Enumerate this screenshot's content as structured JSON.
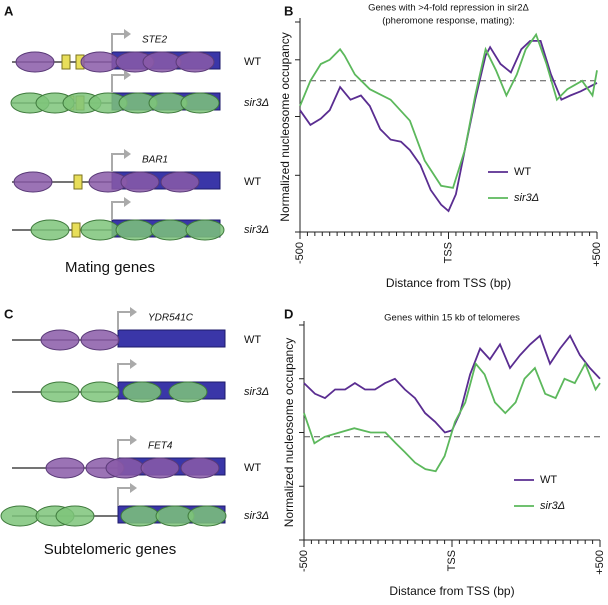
{
  "panels": [
    "A",
    "B",
    "C",
    "D"
  ],
  "diagrams": [
    {
      "caption": "Mating genes",
      "rows": [
        {
          "gene": "STE2",
          "genotype": "WT"
        },
        {
          "genotype": "sir3Δ"
        },
        {
          "gene": "BAR1",
          "genotype": "WT"
        },
        {
          "genotype": "sir3Δ"
        }
      ]
    },
    {
      "caption": "Subtelomeric genes",
      "rows": [
        {
          "gene": "YDR541C",
          "genotype": "WT"
        },
        {
          "genotype": "sir3Δ"
        },
        {
          "gene": "FET4",
          "genotype": "WT"
        },
        {
          "genotype": "sir3Δ"
        }
      ]
    }
  ],
  "chart_data": [
    {
      "type": "line",
      "title": [
        "Genes with >4-fold repression in sir2Δ",
        "(pheromone response, mating):"
      ],
      "xlabel": "Distance from TSS (bp)",
      "ylabel": "Normalized nucleosome occupancy",
      "xlim": [
        -500,
        500
      ],
      "ylim": [
        0,
        100
      ],
      "xticks": [
        {
          "value": -500,
          "label": "-500"
        },
        {
          "value": 0,
          "label": "TSS"
        },
        {
          "value": 500,
          "label": "+500"
        }
      ],
      "xminorticks": [
        -500,
        -475,
        -450,
        -425,
        -400,
        -375,
        -350,
        -325,
        -300,
        -275,
        -250,
        -225,
        -200,
        -175,
        -150,
        -125,
        -100,
        -75,
        -50,
        -25,
        0,
        25,
        50,
        75,
        100,
        125,
        150,
        175,
        200,
        225,
        250,
        275,
        300,
        325,
        350,
        375,
        400,
        425,
        450,
        475,
        500
      ],
      "yticks": [
        0,
        27,
        55,
        82,
        100
      ],
      "reference_line": 72,
      "series": [
        {
          "name": "WT",
          "color": "#5a2d91",
          "x": [
            -500,
            -465,
            -430,
            -400,
            -365,
            -330,
            -295,
            -265,
            -230,
            -195,
            -160,
            -130,
            -95,
            -60,
            -25,
            0,
            25,
            55,
            90,
            125,
            140,
            175,
            210,
            245,
            275,
            310,
            345,
            380,
            410,
            445,
            500
          ],
          "values": [
            58,
            51,
            54,
            58,
            69,
            63,
            65,
            60,
            49,
            44,
            43,
            39,
            32,
            20,
            13,
            10,
            18,
            39,
            63,
            84,
            88,
            80,
            76,
            87,
            91,
            91,
            75,
            63,
            65,
            67,
            71
          ]
        },
        {
          "name": "sir3Δ",
          "color": "#5cb85c",
          "x": [
            -500,
            -465,
            -430,
            -400,
            -365,
            -350,
            -315,
            -265,
            -195,
            -130,
            -80,
            -25,
            15,
            55,
            90,
            125,
            160,
            195,
            230,
            260,
            295,
            330,
            365,
            400,
            450,
            485,
            500
          ],
          "values": [
            60,
            72,
            80,
            82,
            87,
            84,
            75,
            68,
            63,
            53,
            34,
            22,
            21,
            39,
            65,
            87,
            77,
            65,
            75,
            87,
            94,
            80,
            63,
            68,
            72,
            65,
            77
          ]
        }
      ]
    },
    {
      "type": "line",
      "title": [
        "Genes within 15 kb of telomeres"
      ],
      "xlabel": "Distance from TSS (bp)",
      "ylabel": "Normalized nucleosome occupancy",
      "xlim": [
        -500,
        500
      ],
      "ylim": [
        0,
        100
      ],
      "xticks": [
        {
          "value": -500,
          "label": "-500"
        },
        {
          "value": 0,
          "label": "TSS"
        },
        {
          "value": 500,
          "label": "+500"
        }
      ],
      "xminorticks": [
        -500,
        -475,
        -450,
        -425,
        -400,
        -375,
        -350,
        -325,
        -300,
        -275,
        -250,
        -225,
        -200,
        -175,
        -150,
        -125,
        -100,
        -75,
        -50,
        -25,
        0,
        25,
        50,
        75,
        100,
        125,
        150,
        175,
        200,
        225,
        250,
        275,
        300,
        325,
        350,
        375,
        400,
        425,
        450,
        475,
        500
      ],
      "yticks": [
        0,
        25,
        50,
        75,
        100
      ],
      "reference_line": 48,
      "series": [
        {
          "name": "WT",
          "color": "#5a2d91",
          "x": [
            -500,
            -463,
            -429,
            -395,
            -361,
            -328,
            -294,
            -260,
            -226,
            -193,
            -159,
            -125,
            -91,
            -57,
            -24,
            0,
            27,
            61,
            95,
            128,
            162,
            196,
            230,
            264,
            297,
            331,
            365,
            399,
            432,
            466,
            500
          ],
          "values": [
            73,
            68,
            66,
            70,
            70,
            73,
            70,
            70,
            73,
            75,
            70,
            66,
            59,
            55,
            50,
            51,
            59,
            77,
            89,
            84,
            91,
            80,
            86,
            91,
            95,
            82,
            89,
            95,
            86,
            80,
            75
          ]
        },
        {
          "name": "sir3Δ",
          "color": "#5cb85c",
          "x": [
            -500,
            -465,
            -430,
            -380,
            -330,
            -275,
            -225,
            -190,
            -160,
            -125,
            -90,
            -55,
            -25,
            10,
            45,
            80,
            110,
            145,
            180,
            215,
            245,
            280,
            315,
            350,
            380,
            415,
            450,
            485,
            500
          ],
          "values": [
            59,
            45,
            48,
            50,
            52,
            50,
            50,
            45,
            41,
            36,
            33,
            32,
            39,
            55,
            64,
            82,
            77,
            64,
            59,
            64,
            75,
            80,
            68,
            66,
            75,
            73,
            82,
            70,
            73
          ]
        }
      ]
    }
  ]
}
